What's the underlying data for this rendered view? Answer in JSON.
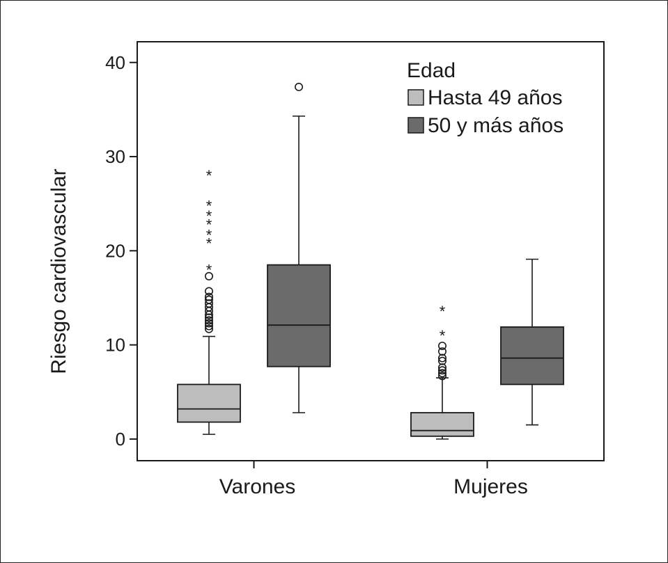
{
  "chart_data": {
    "type": "boxplot",
    "ylabel": "Riesgo cardiovascular",
    "xlabel": "",
    "ylim": [
      -2.3,
      42.2
    ],
    "yticks": [
      0,
      10,
      20,
      30,
      40
    ],
    "categories": [
      "Varones",
      "Mujeres"
    ],
    "legend": {
      "title": "Edad",
      "placement": "top-right"
    },
    "series": [
      {
        "name": "Hasta 49 años",
        "color": "#bdbdbd",
        "boxes": [
          {
            "category": "Varones",
            "whisker_low": 0.5,
            "q1": 1.8,
            "median": 3.2,
            "q3": 5.8,
            "whisker_high": 10.9,
            "outliers": [
              11.7,
              12.0,
              12.3,
              12.6,
              12.9,
              13.2,
              13.6,
              14.0,
              14.4,
              14.8,
              15.1,
              15.7,
              17.3
            ],
            "extremes": [
              18.3,
              21.1,
              22.0,
              23.1,
              24.0,
              25.1,
              28.3
            ]
          },
          {
            "category": "Mujeres",
            "whisker_low": 0.0,
            "q1": 0.3,
            "median": 0.9,
            "q3": 2.8,
            "whisker_high": 6.5,
            "outliers": [
              6.7,
              7.0,
              7.3,
              7.6,
              8.3,
              8.6,
              9.3,
              9.9
            ],
            "extremes": [
              11.3,
              13.9
            ]
          }
        ]
      },
      {
        "name": "50 y más años",
        "color": "#6b6b6b",
        "boxes": [
          {
            "category": "Varones",
            "whisker_low": 2.8,
            "q1": 7.7,
            "median": 12.1,
            "q3": 18.5,
            "whisker_high": 34.3,
            "outliers": [
              37.4
            ],
            "extremes": []
          },
          {
            "category": "Mujeres",
            "whisker_low": 1.5,
            "q1": 5.8,
            "median": 8.6,
            "q3": 11.9,
            "whisker_high": 19.1,
            "outliers": [],
            "extremes": []
          }
        ]
      }
    ],
    "grid": false
  }
}
